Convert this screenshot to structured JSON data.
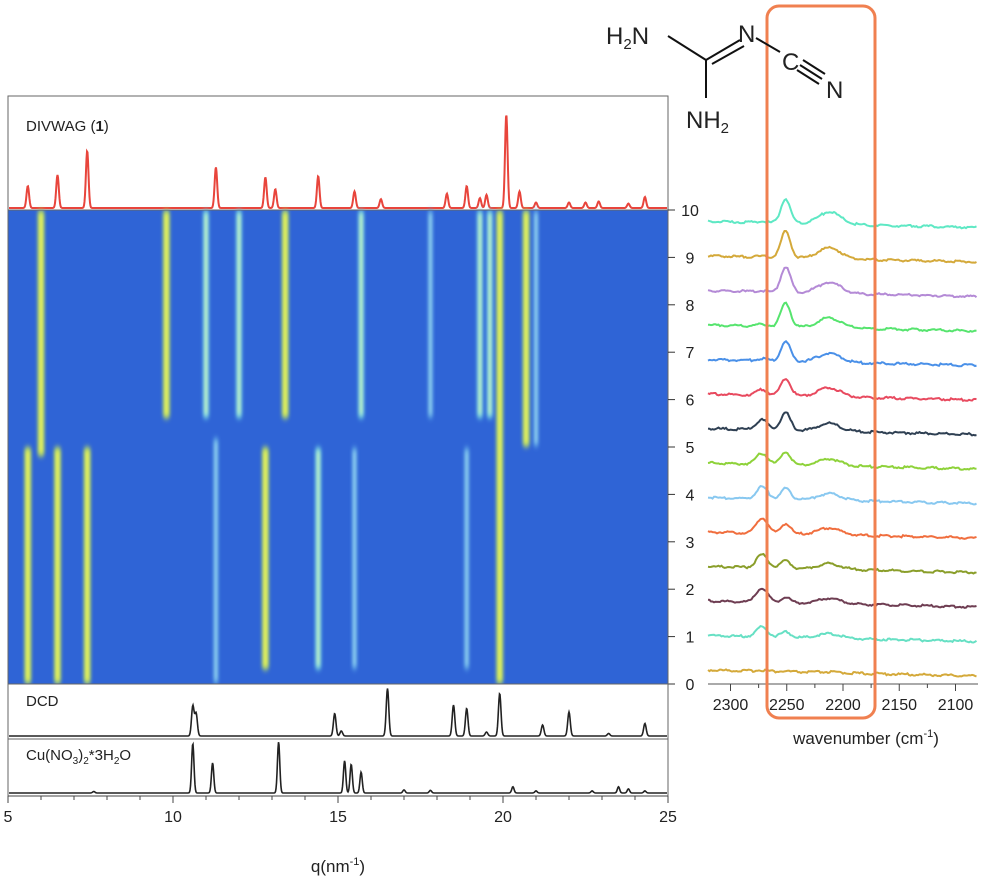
{
  "chart_data": [
    {
      "type": "line",
      "panel": "DIVWAG (1)",
      "label": "DIVWAG (",
      "label_bold": "1",
      "label_close": ")",
      "color": "#e8453c",
      "xlim": [
        5,
        25
      ],
      "peaks": [
        {
          "x": 5.6,
          "h": 0.2
        },
        {
          "x": 6.5,
          "h": 0.3
        },
        {
          "x": 7.4,
          "h": 0.52
        },
        {
          "x": 11.3,
          "h": 0.37
        },
        {
          "x": 12.8,
          "h": 0.28
        },
        {
          "x": 13.1,
          "h": 0.17
        },
        {
          "x": 14.4,
          "h": 0.29
        },
        {
          "x": 15.5,
          "h": 0.15
        },
        {
          "x": 16.3,
          "h": 0.08
        },
        {
          "x": 18.3,
          "h": 0.13
        },
        {
          "x": 18.9,
          "h": 0.2
        },
        {
          "x": 19.3,
          "h": 0.09
        },
        {
          "x": 19.5,
          "h": 0.12
        },
        {
          "x": 20.1,
          "h": 0.85
        },
        {
          "x": 20.5,
          "h": 0.15
        },
        {
          "x": 21.0,
          "h": 0.05
        },
        {
          "x": 22.0,
          "h": 0.05
        },
        {
          "x": 22.5,
          "h": 0.05
        },
        {
          "x": 22.9,
          "h": 0.06
        },
        {
          "x": 23.8,
          "h": 0.04
        },
        {
          "x": 24.3,
          "h": 0.1
        }
      ]
    },
    {
      "type": "heatmap",
      "xlabel": "q(nm",
      "xlabel_sup": "-1",
      "xlabel_close": ")",
      "xlim": [
        5,
        25
      ],
      "ylim": [
        0,
        10
      ],
      "x_ticks": [
        5,
        10,
        15,
        20,
        25
      ],
      "y_ticks": [
        0,
        1,
        2,
        3,
        4,
        5,
        6,
        7,
        8,
        9,
        10
      ],
      "background": "#2f64d6",
      "bands": [
        {
          "x": 5.6,
          "y0": 0.0,
          "y1": 5.0,
          "level": "high"
        },
        {
          "x": 6.5,
          "y0": 0.0,
          "y1": 5.0,
          "level": "high"
        },
        {
          "x": 7.4,
          "y0": 0.0,
          "y1": 5.0,
          "level": "high"
        },
        {
          "x": 6.0,
          "y0": 4.8,
          "y1": 10.0,
          "level": "high"
        },
        {
          "x": 9.8,
          "y0": 5.6,
          "y1": 10.0,
          "level": "high"
        },
        {
          "x": 11.0,
          "y0": 5.6,
          "y1": 10.0,
          "level": "mid"
        },
        {
          "x": 11.3,
          "y0": 0.0,
          "y1": 5.2,
          "level": "low"
        },
        {
          "x": 12.0,
          "y0": 5.6,
          "y1": 10.0,
          "level": "mid"
        },
        {
          "x": 12.8,
          "y0": 0.3,
          "y1": 5.0,
          "level": "high"
        },
        {
          "x": 13.4,
          "y0": 5.6,
          "y1": 10.0,
          "level": "high"
        },
        {
          "x": 14.4,
          "y0": 0.3,
          "y1": 5.0,
          "level": "mid"
        },
        {
          "x": 15.5,
          "y0": 0.3,
          "y1": 5.0,
          "level": "low"
        },
        {
          "x": 15.7,
          "y0": 5.6,
          "y1": 10.0,
          "level": "mid"
        },
        {
          "x": 17.8,
          "y0": 5.6,
          "y1": 10.0,
          "level": "low"
        },
        {
          "x": 18.9,
          "y0": 0.3,
          "y1": 5.0,
          "level": "low"
        },
        {
          "x": 19.3,
          "y0": 5.6,
          "y1": 10.0,
          "level": "mid"
        },
        {
          "x": 19.6,
          "y0": 5.6,
          "y1": 10.0,
          "level": "mid"
        },
        {
          "x": 19.9,
          "y0": 0.0,
          "y1": 10.0,
          "level": "high"
        },
        {
          "x": 20.7,
          "y0": 5.0,
          "y1": 10.0,
          "level": "high"
        },
        {
          "x": 21.0,
          "y0": 5.0,
          "y1": 10.0,
          "level": "low"
        }
      ]
    },
    {
      "type": "line",
      "panel": "DCD",
      "label": "DCD",
      "color": "#222222",
      "xlim": [
        5,
        25
      ],
      "peaks": [
        {
          "x": 10.6,
          "h": 0.6
        },
        {
          "x": 10.7,
          "h": 0.45
        },
        {
          "x": 14.9,
          "h": 0.45
        },
        {
          "x": 15.1,
          "h": 0.1
        },
        {
          "x": 16.5,
          "h": 0.95
        },
        {
          "x": 18.5,
          "h": 0.62
        },
        {
          "x": 18.9,
          "h": 0.55
        },
        {
          "x": 19.5,
          "h": 0.08
        },
        {
          "x": 19.9,
          "h": 0.85
        },
        {
          "x": 21.2,
          "h": 0.22
        },
        {
          "x": 22.0,
          "h": 0.48
        },
        {
          "x": 23.2,
          "h": 0.05
        },
        {
          "x": 24.3,
          "h": 0.25
        }
      ]
    },
    {
      "type": "line",
      "panel": "Cu(NO3)2*3H2O",
      "label_parts": [
        "Cu(NO",
        "3",
        ")",
        "2",
        "*3H",
        "2",
        "O"
      ],
      "color": "#222222",
      "xlim": [
        5,
        25
      ],
      "peaks": [
        {
          "x": 7.6,
          "h": 0.03
        },
        {
          "x": 10.6,
          "h": 0.95
        },
        {
          "x": 11.2,
          "h": 0.58
        },
        {
          "x": 13.2,
          "h": 0.98
        },
        {
          "x": 15.2,
          "h": 0.62
        },
        {
          "x": 15.4,
          "h": 0.55
        },
        {
          "x": 15.7,
          "h": 0.4
        },
        {
          "x": 17.0,
          "h": 0.06
        },
        {
          "x": 17.8,
          "h": 0.05
        },
        {
          "x": 20.3,
          "h": 0.12
        },
        {
          "x": 21.0,
          "h": 0.04
        },
        {
          "x": 22.7,
          "h": 0.04
        },
        {
          "x": 23.5,
          "h": 0.12
        },
        {
          "x": 23.8,
          "h": 0.08
        },
        {
          "x": 24.3,
          "h": 0.04
        }
      ]
    },
    {
      "type": "line",
      "panel": "IR spectra",
      "xlabel": "wavenumber (cm",
      "xlabel_sup": "-1",
      "xlabel_close": ")",
      "xlim": [
        2320,
        2080
      ],
      "x_ticks": [
        2300,
        2250,
        2200,
        2150,
        2100
      ],
      "highlight_range": [
        2280,
        2180
      ],
      "highlight_color": "#f08050",
      "series": [
        {
          "level": 0,
          "color": "#d4a93a",
          "peak_2272": 0.05,
          "peak_2250": 0.02,
          "peak_2210": 0.03
        },
        {
          "level": 1,
          "color": "#67e0c4",
          "peak_2272": 0.45,
          "peak_2250": 0.25,
          "peak_2210": 0.2
        },
        {
          "level": 2,
          "color": "#6e3d52",
          "peak_2272": 0.65,
          "peak_2250": 0.25,
          "peak_2210": 0.25
        },
        {
          "level": 3,
          "color": "#8a9e2a",
          "peak_2272": 0.6,
          "peak_2250": 0.35,
          "peak_2210": 0.25
        },
        {
          "level": 4,
          "color": "#f06e3e",
          "peak_2272": 0.7,
          "peak_2250": 0.45,
          "peak_2210": 0.3
        },
        {
          "level": 5,
          "color": "#88c8f0",
          "peak_2272": 0.55,
          "peak_2250": 0.5,
          "peak_2210": 0.3
        },
        {
          "level": 6,
          "color": "#8ed23a",
          "peak_2272": 0.5,
          "peak_2250": 0.6,
          "peak_2210": 0.3
        },
        {
          "level": 7,
          "color": "#2f4053",
          "peak_2272": 0.45,
          "peak_2250": 0.8,
          "peak_2210": 0.35
        },
        {
          "level": 8,
          "color": "#e84a5f",
          "peak_2272": 0.25,
          "peak_2250": 0.8,
          "peak_2210": 0.4
        },
        {
          "level": 9,
          "color": "#4a90e8",
          "peak_2272": 0.1,
          "peak_2250": 0.9,
          "peak_2210": 0.4
        },
        {
          "level": 10,
          "color": "#56e46e",
          "peak_2272": 0.1,
          "peak_2250": 1.1,
          "peak_2210": 0.45
        },
        {
          "level": 11,
          "color": "#b48ad6",
          "peak_2272": 0.05,
          "peak_2250": 1.15,
          "peak_2210": 0.5
        },
        {
          "level": 12,
          "color": "#d4a93a",
          "peak_2272": 0.05,
          "peak_2250": 1.2,
          "peak_2210": 0.5
        },
        {
          "level": 13,
          "color": "#5ee8c4",
          "peak_2272": 0.05,
          "peak_2250": 1.1,
          "peak_2210": 0.55
        }
      ]
    }
  ],
  "molecule": {
    "name": "dicyandiamide",
    "atoms": [
      "H2N",
      "N",
      "C",
      "N",
      "NH2"
    ]
  }
}
